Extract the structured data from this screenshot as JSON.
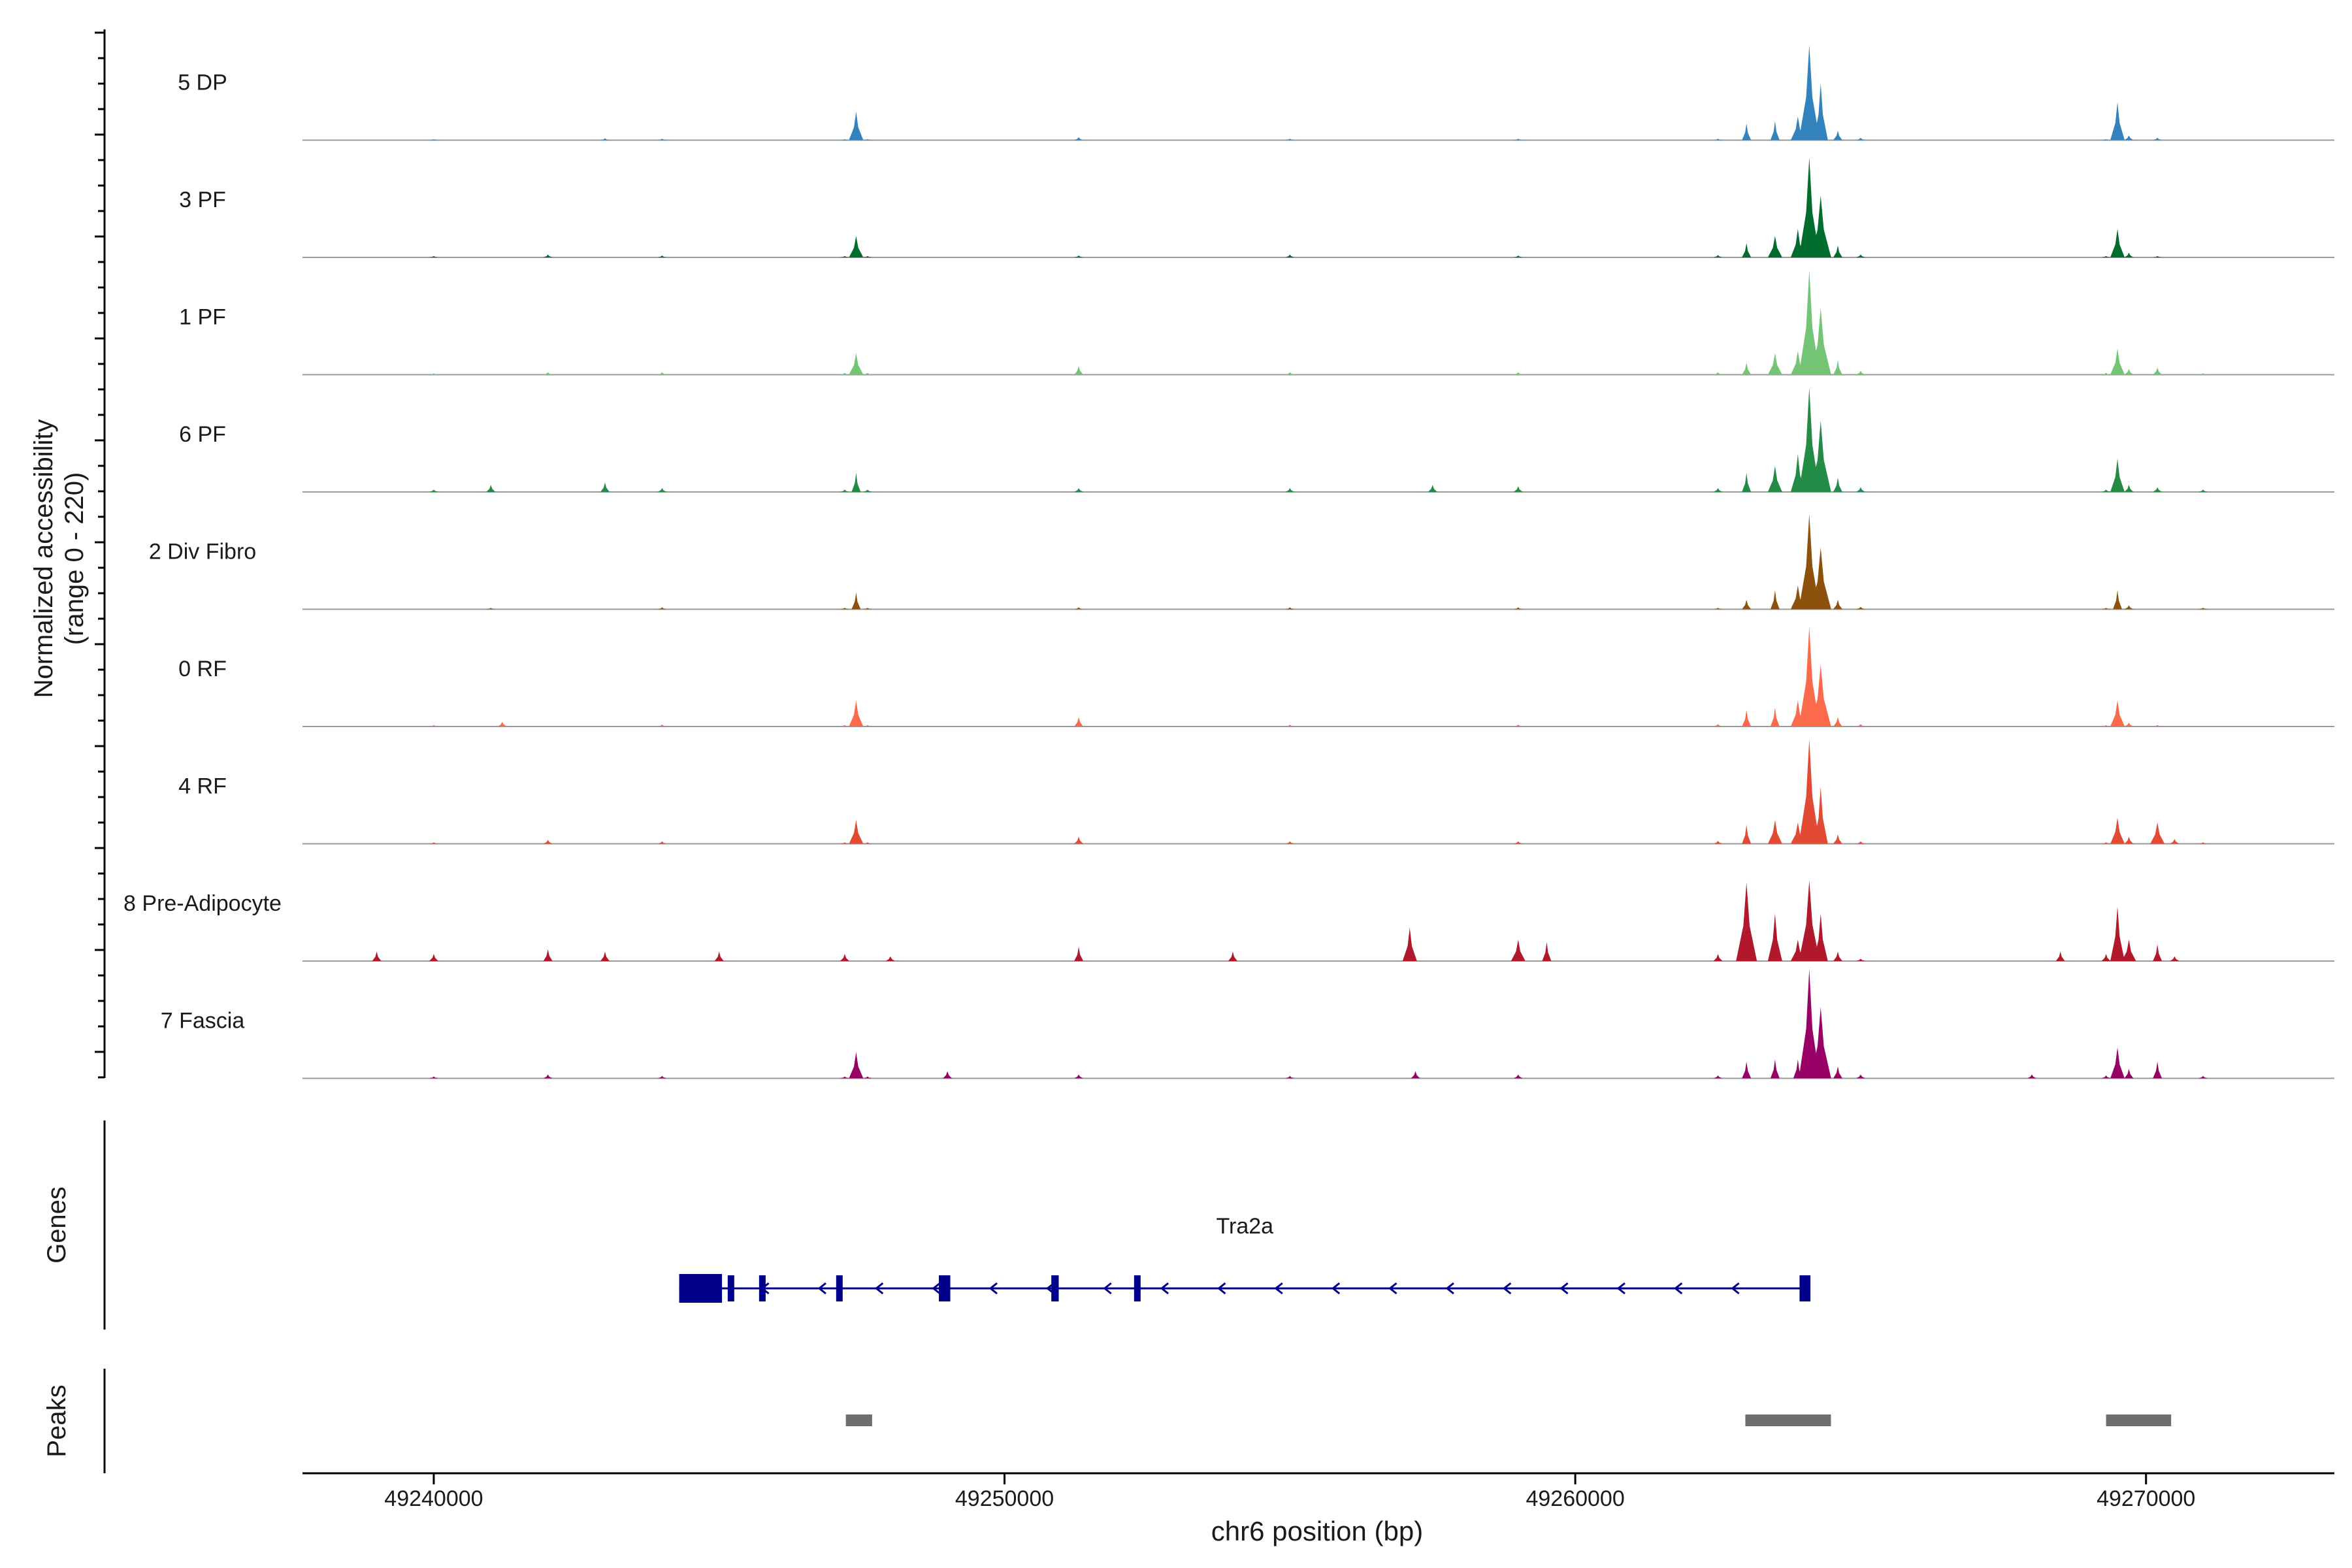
{
  "chart_data": {
    "type": "area",
    "chromosome": "chr6",
    "xlabel": "chr6 position (bp)",
    "xlim": [
      49237700,
      49273300
    ],
    "x_ticks": [
      49240000,
      49250000,
      49260000,
      49270000
    ],
    "x_tick_labels": [
      "49240000",
      "49250000",
      "49260000",
      "49270000"
    ],
    "ylabel_line1": "Normalized accessibility",
    "ylabel_line2": "(range 0 - 220)",
    "ylim": [
      0,
      220
    ],
    "grid": false,
    "legend": "none",
    "series": [
      {
        "name": "5 DP",
        "color": "#3182bd",
        "x": [
          49240000,
          49243000,
          49244000,
          49247200,
          49247400,
          49247600,
          49251300,
          49255000,
          49259000,
          49262500,
          49263000,
          49263500,
          49263900,
          49264100,
          49264300,
          49264600,
          49265000,
          49269300,
          49269500,
          49269700,
          49270200
        ],
        "values": [
          2,
          4,
          3,
          2,
          60,
          2,
          6,
          3,
          3,
          3,
          35,
          40,
          50,
          200,
          120,
          20,
          5,
          2,
          80,
          10,
          5
        ]
      },
      {
        "name": "3 PF",
        "color": "#006d2c",
        "x": [
          49240000,
          49242000,
          49244000,
          49247200,
          49247400,
          49247600,
          49251300,
          49255000,
          49259000,
          49262500,
          49263000,
          49263500,
          49263900,
          49264100,
          49264300,
          49264600,
          49265000,
          49269300,
          49269500,
          49269700,
          49270200
        ],
        "values": [
          3,
          6,
          4,
          3,
          45,
          3,
          4,
          6,
          4,
          5,
          30,
          45,
          60,
          210,
          130,
          25,
          6,
          3,
          60,
          10,
          3
        ]
      },
      {
        "name": "1 PF",
        "color": "#74c476",
        "x": [
          49240000,
          49242000,
          49244000,
          49247200,
          49247400,
          49247600,
          49251300,
          49255000,
          49259000,
          49262500,
          49263000,
          49263500,
          49263900,
          49264100,
          49264300,
          49264600,
          49265000,
          49269300,
          49269500,
          49269700,
          49270200,
          49271000
        ],
        "values": [
          3,
          5,
          5,
          4,
          45,
          4,
          18,
          5,
          5,
          5,
          25,
          45,
          50,
          220,
          140,
          30,
          8,
          4,
          55,
          12,
          15,
          3
        ]
      },
      {
        "name": "6 PF",
        "color": "#238b45",
        "x": [
          49240000,
          49241000,
          49243000,
          49244000,
          49247200,
          49247400,
          49247600,
          49251300,
          49255000,
          49257500,
          49259000,
          49262500,
          49263000,
          49263500,
          49263900,
          49264100,
          49264300,
          49264600,
          49265000,
          49269300,
          49269500,
          49269700,
          49270200,
          49271000
        ],
        "values": [
          5,
          15,
          20,
          8,
          5,
          40,
          5,
          8,
          8,
          15,
          12,
          8,
          40,
          55,
          80,
          220,
          150,
          30,
          10,
          5,
          70,
          15,
          10,
          5
        ]
      },
      {
        "name": "2 Div Fibro",
        "color": "#8c510a",
        "x": [
          49241000,
          49244000,
          49247200,
          49247400,
          49247600,
          49251300,
          49255000,
          49259000,
          49262500,
          49263000,
          49263500,
          49263900,
          49264100,
          49264300,
          49264600,
          49265000,
          49269300,
          49269500,
          49269700,
          49271000
        ],
        "values": [
          3,
          4,
          3,
          35,
          3,
          4,
          4,
          4,
          3,
          20,
          40,
          50,
          200,
          130,
          20,
          5,
          3,
          40,
          8,
          3
        ]
      },
      {
        "name": "0 RF",
        "color": "#fb6a4a",
        "x": [
          49240000,
          49241200,
          49244000,
          49247200,
          49247400,
          49247600,
          49251300,
          49255000,
          49259000,
          49262500,
          49263000,
          49263500,
          49263900,
          49264100,
          49264300,
          49264600,
          49265000,
          49269300,
          49269500,
          49269700,
          49270200
        ],
        "values": [
          3,
          10,
          4,
          3,
          55,
          3,
          20,
          4,
          4,
          5,
          35,
          40,
          55,
          210,
          130,
          20,
          5,
          3,
          55,
          8,
          3
        ]
      },
      {
        "name": "4 RF",
        "color": "#e34a33",
        "x": [
          49240000,
          49242000,
          49244000,
          49247200,
          49247400,
          49247600,
          49251300,
          49255000,
          49259000,
          49262500,
          49263000,
          49263500,
          49263900,
          49264100,
          49264300,
          49264600,
          49265000,
          49269300,
          49269500,
          49269700,
          49270200,
          49270500,
          49271000
        ],
        "values": [
          3,
          8,
          5,
          3,
          50,
          3,
          15,
          5,
          5,
          6,
          40,
          50,
          45,
          220,
          120,
          20,
          5,
          3,
          55,
          15,
          45,
          10,
          3
        ]
      },
      {
        "name": "8 Pre-Adipocyte",
        "color": "#b2182b",
        "x": [
          49239000,
          49240000,
          49242000,
          49243000,
          49245000,
          49247200,
          49248000,
          49251300,
          49254000,
          49257100,
          49259000,
          49259500,
          49262500,
          49263000,
          49263500,
          49263900,
          49264100,
          49264300,
          49264600,
          49265000,
          49268500,
          49269300,
          49269500,
          49269700,
          49270200,
          49270500
        ],
        "values": [
          20,
          15,
          25,
          20,
          20,
          15,
          10,
          30,
          20,
          70,
          45,
          40,
          15,
          165,
          100,
          45,
          170,
          100,
          20,
          5,
          20,
          15,
          115,
          45,
          35,
          10
        ]
      },
      {
        "name": "7 Fascia",
        "color": "#990066",
        "x": [
          49240000,
          49242000,
          49244000,
          49247200,
          49247400,
          49247600,
          49249000,
          49251300,
          49255000,
          49257200,
          49259000,
          49262500,
          49263000,
          49263500,
          49263900,
          49264100,
          49264300,
          49264600,
          49265000,
          49268000,
          49269300,
          49269500,
          49269700,
          49270200,
          49271000
        ],
        "values": [
          4,
          8,
          5,
          4,
          55,
          4,
          15,
          8,
          5,
          15,
          8,
          6,
          35,
          40,
          40,
          230,
          150,
          25,
          8,
          8,
          6,
          65,
          20,
          35,
          5
        ]
      }
    ],
    "genes": [
      {
        "name": "Tra2a",
        "strand": "-",
        "start": 49244300,
        "end": 49264120,
        "exons": [
          [
            49244300,
            49245050
          ],
          [
            49245150,
            49245230
          ],
          [
            49245700,
            49245800
          ],
          [
            49247050,
            49247150
          ],
          [
            49248850,
            49249050
          ],
          [
            49250820,
            49250950
          ],
          [
            49252270,
            49252370
          ],
          [
            49263930,
            49264120
          ]
        ]
      }
    ],
    "genes_label": "Genes",
    "peaks_label": "Peaks",
    "peaks": [
      [
        49247220,
        49247680
      ],
      [
        49262980,
        49264480
      ],
      [
        49269300,
        49270440
      ]
    ]
  }
}
